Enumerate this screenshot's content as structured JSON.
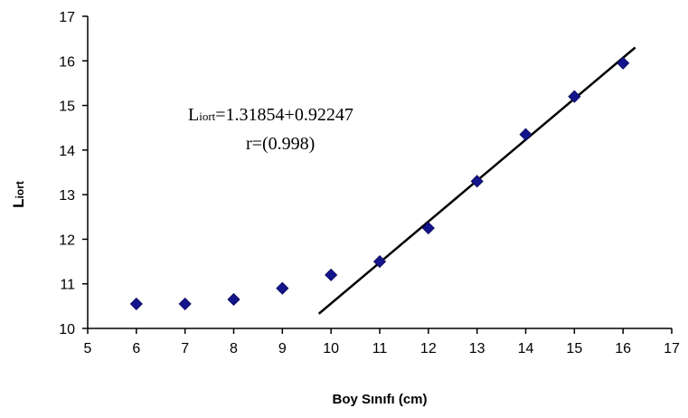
{
  "chart_data": {
    "type": "scatter",
    "title": "",
    "xlabel": "Boy Sınıfı (cm)",
    "ylabel": {
      "main": "L",
      "sub": "iort"
    },
    "xlim": [
      5,
      17
    ],
    "ylim": [
      10,
      17
    ],
    "x_ticks": [
      5,
      6,
      7,
      8,
      9,
      10,
      11,
      12,
      13,
      14,
      15,
      16,
      17
    ],
    "y_ticks": [
      10,
      11,
      12,
      13,
      14,
      15,
      16,
      17
    ],
    "grid": false,
    "legend": "none",
    "series": [
      {
        "marker": "diamond",
        "color": "#14148c",
        "x": [
          6,
          7,
          8,
          9,
          10,
          11,
          12,
          13,
          14,
          15,
          16
        ],
        "y": [
          10.55,
          10.55,
          10.65,
          10.9,
          11.2,
          11.5,
          12.25,
          13.3,
          14.35,
          15.2,
          15.95
        ]
      }
    ],
    "trendline": {
      "color": "#000000",
      "x": [
        9.75,
        16.25
      ],
      "y": [
        10.33,
        16.3
      ]
    },
    "annotation": {
      "line1_main": "L",
      "line1_sub": "iort",
      "line1_rest": "=1.31854+0.92247",
      "line2": "r=(0.998)"
    }
  }
}
